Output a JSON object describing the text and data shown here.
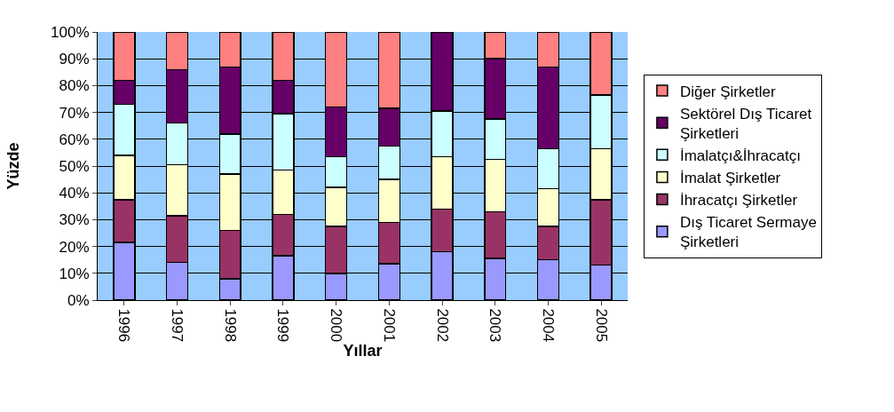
{
  "chart_data": {
    "type": "bar",
    "stacked": true,
    "xlabel": "Yıllar",
    "ylabel": "Yüzde",
    "categories": [
      "1996",
      "1997",
      "1998",
      "1999",
      "2000",
      "2001",
      "2002",
      "2003",
      "2004",
      "2005"
    ],
    "series": [
      {
        "name": "Dış Ticaret Sermaye Şirketleri",
        "color": "#9999ff",
        "values": [
          21.5,
          14,
          8,
          16.5,
          10,
          13.5,
          18,
          15.5,
          15,
          13
        ]
      },
      {
        "name": "İhracatçı Şirketler",
        "color": "#993366",
        "values": [
          16,
          17.5,
          18,
          15.5,
          17.5,
          15.5,
          16,
          17.5,
          12.5,
          24.5
        ]
      },
      {
        "name": "İmalat Şirketler",
        "color": "#ffffcc",
        "values": [
          16.5,
          19,
          21,
          16.5,
          14.5,
          16,
          19.5,
          19.5,
          14,
          19
        ]
      },
      {
        "name": "İmalatçı&İhracatçı",
        "color": "#ccffff",
        "values": [
          19,
          15.5,
          15,
          21,
          11.5,
          12.5,
          17,
          15,
          15,
          20
        ]
      },
      {
        "name": "Sektörel Dış Ticaret Şirketleri",
        "color": "#660066",
        "values": [
          9,
          20,
          25,
          12.5,
          18.5,
          14,
          29.5,
          22.5,
          30.5,
          0
        ]
      },
      {
        "name": "Diğer Şirketler",
        "color": "#ff8080",
        "values": [
          18,
          14,
          13,
          18,
          28,
          28.5,
          0,
          10,
          13,
          23.5
        ]
      }
    ],
    "ylim": [
      0,
      100
    ],
    "yticks": [
      {
        "value": 0,
        "label": "0%"
      },
      {
        "value": 10,
        "label": "10%"
      },
      {
        "value": 20,
        "label": "20%"
      },
      {
        "value": 30,
        "label": "30%"
      },
      {
        "value": 40,
        "label": "40%"
      },
      {
        "value": 50,
        "label": "50%"
      },
      {
        "value": 60,
        "label": "60%"
      },
      {
        "value": 70,
        "label": "70%"
      },
      {
        "value": 80,
        "label": "80%"
      },
      {
        "value": 90,
        "label": "90%"
      },
      {
        "value": 100,
        "label": "100%"
      }
    ],
    "grid": "y",
    "legend": "right"
  }
}
